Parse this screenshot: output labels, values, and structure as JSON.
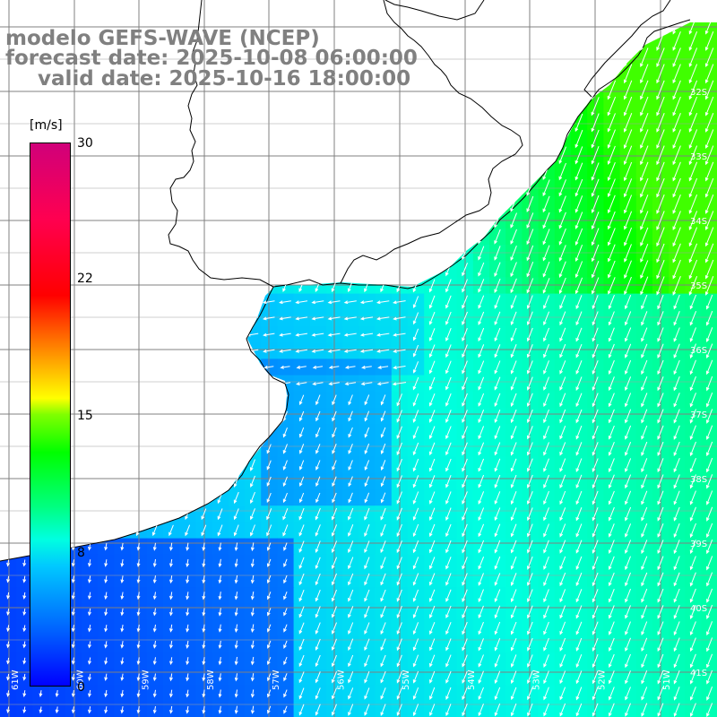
{
  "title": {
    "line1": "modelo GEFS-WAVE (NCEP)",
    "line2": "forecast date: 2025-10-08 06:00:00",
    "line3": "valid date: 2025-10-16 18:00:00"
  },
  "colorbar": {
    "units": "[m/s]",
    "ticks": [
      "30",
      "22",
      "15",
      "8",
      "0"
    ],
    "tick_values": [
      30,
      22,
      15,
      8,
      0
    ],
    "min": 0,
    "max": 30
  },
  "grid": {
    "lat_labels": [
      "32S",
      "33S",
      "34S",
      "35S",
      "36S",
      "37S",
      "38S",
      "39S",
      "40S",
      "41S"
    ],
    "lon_labels": [
      "61W",
      "60W",
      "59W",
      "58W",
      "57W",
      "56W",
      "55W",
      "54W",
      "53W",
      "52W",
      "51W"
    ]
  },
  "colors": {
    "land": "#ffffff",
    "coast": "#000000",
    "grid": "#808080",
    "arrows": "#ffffff",
    "title_text": "#808080"
  },
  "map": {
    "region": "Rio de la Plata / South Atlantic",
    "field": "wind speed and direction",
    "arrow_direction": "toward south-southwest",
    "wind_speed_range_mps": [
      0,
      14
    ]
  }
}
